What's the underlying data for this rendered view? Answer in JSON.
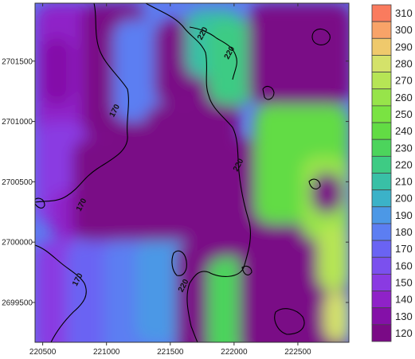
{
  "chart_data": {
    "type": "heatmap",
    "title": "",
    "xlabel": "",
    "ylabel": "",
    "x_ticks": [
      "220500",
      "221000",
      "221500",
      "222000",
      "222500"
    ],
    "y_ticks": [
      "2701500",
      "2701000",
      "2700500",
      "2700000",
      "2699500"
    ],
    "x_tick_values": [
      220500,
      221000,
      221500,
      222000,
      222500
    ],
    "y_tick_values": [
      2701500,
      2701000,
      2700500,
      2700000,
      2699500
    ],
    "xlim": [
      220440,
      222900
    ],
    "ylim": [
      2699170,
      2701980
    ],
    "grid": false,
    "legend": "right",
    "legend_levels": [
      "120",
      "130",
      "140",
      "150",
      "160",
      "170",
      "180",
      "190",
      "200",
      "210",
      "220",
      "230",
      "240",
      "250",
      "260",
      "270",
      "280",
      "290",
      "300",
      "310"
    ],
    "level_values": [
      120,
      130,
      140,
      150,
      160,
      170,
      180,
      190,
      200,
      210,
      220,
      230,
      240,
      250,
      260,
      270,
      280,
      290,
      300,
      310
    ],
    "level_colors": [
      "#7a0a86",
      "#8410a8",
      "#8f22c8",
      "#8a3ae2",
      "#7b50ee",
      "#6a63f3",
      "#5c7ef2",
      "#4c98e6",
      "#3bb2c8",
      "#39c0a6",
      "#3ecb84",
      "#4cd45c",
      "#62dc44",
      "#7ae342",
      "#97e44a",
      "#b6e555",
      "#d4e26a",
      "#efc96c",
      "#f8a368",
      "#fa7b5e"
    ],
    "contour_labels": [
      "170",
      "170",
      "170",
      "220",
      "220",
      "220",
      "220"
    ],
    "contour_label_values": [
      {
        "x": 221080,
        "y": 2701080,
        "value": "170"
      },
      {
        "x": 220820,
        "y": 2700300,
        "value": "170"
      },
      {
        "x": 220790,
        "y": 2699680,
        "value": "170"
      },
      {
        "x": 221770,
        "y": 2701720,
        "value": "220"
      },
      {
        "x": 221980,
        "y": 2701560,
        "value": "220"
      },
      {
        "x": 222050,
        "y": 2700630,
        "value": "220"
      },
      {
        "x": 221620,
        "y": 2699630,
        "value": "220"
      }
    ]
  }
}
